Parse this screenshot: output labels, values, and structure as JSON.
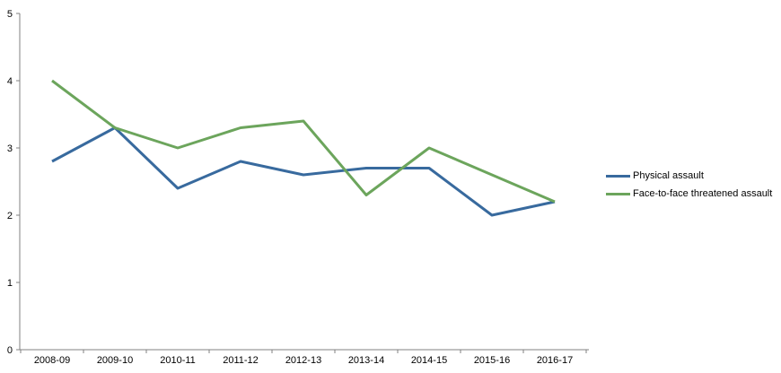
{
  "chart_data": {
    "type": "line",
    "title": "",
    "xlabel": "",
    "ylabel": "",
    "categories": [
      "2008-09",
      "2009-10",
      "2010-11",
      "2011-12",
      "2012-13",
      "2013-14",
      "2014-15",
      "2015-16",
      "2016-17"
    ],
    "series": [
      {
        "name": "Physical assault",
        "color": "#386a9e",
        "values": [
          2.8,
          3.3,
          2.4,
          2.8,
          2.6,
          2.7,
          2.7,
          2.0,
          2.2
        ]
      },
      {
        "name": "Face-to-face threatened assault",
        "color": "#6ca55c",
        "values": [
          4.0,
          3.3,
          3.0,
          3.3,
          3.4,
          2.3,
          3.0,
          2.6,
          2.2
        ]
      }
    ],
    "ylim": [
      0,
      5
    ],
    "yticks": [
      0,
      1,
      2,
      3,
      4,
      5
    ],
    "grid": false,
    "legend_position": "right",
    "axis_color": "#808080",
    "text_color": "#000000",
    "tick_label_font_px": 11,
    "line_width": 3
  }
}
